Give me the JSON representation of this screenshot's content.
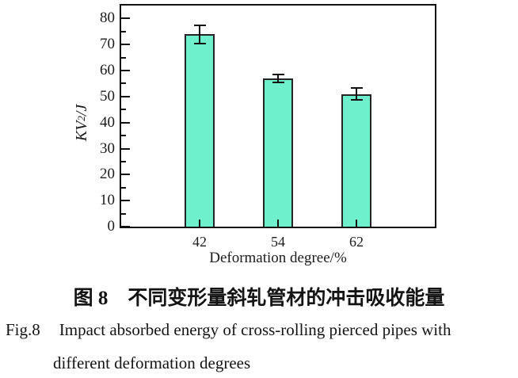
{
  "figure": {
    "caption_cn": "图 8　不同变形量斜轧管材的冲击吸收能量",
    "caption_en_label": "Fig.8",
    "caption_en_line1": "Impact absorbed energy of cross-rolling pierced pipes with",
    "caption_en_line2": "different deformation degrees"
  },
  "chart_data": {
    "type": "bar",
    "categories": [
      "42",
      "54",
      "62"
    ],
    "values": [
      74,
      57,
      51
    ],
    "errors": [
      3.5,
      1.5,
      2.2
    ],
    "title": "",
    "xlabel": "Deformation degree/%",
    "ylabel": "KV2/J",
    "ylabel_parts": {
      "main": "KV",
      "sub": "2",
      "unit": "/J"
    },
    "ylim": [
      0,
      85
    ],
    "yticks": [
      0,
      10,
      20,
      30,
      40,
      50,
      60,
      70,
      80
    ],
    "ytick_minor_step": 5,
    "grid": false,
    "legend": "none",
    "bar_color": "#6ff0cd",
    "bar_edge_color": "#242424",
    "error_bar_color": "#111111",
    "axis_color": "#111111"
  }
}
